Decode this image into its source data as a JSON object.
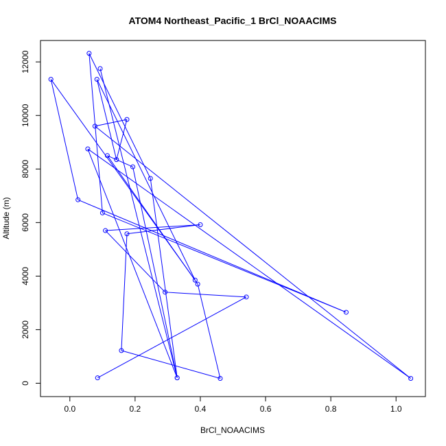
{
  "chart_data": {
    "type": "line",
    "title": "ATOM4 Northeast_Pacific_1 BrCl_NOAACIMS",
    "xlabel": "BrCl_NOAACIMS",
    "ylabel": "Altitude (m)",
    "xlim": [
      -0.09,
      1.09
    ],
    "ylim": [
      -500,
      12800
    ],
    "x_ticks": [
      0.0,
      0.2,
      0.4,
      0.6,
      0.8,
      1.0
    ],
    "x_tick_labels": [
      "0.0",
      "0.2",
      "0.4",
      "0.6",
      "0.8",
      "1.0"
    ],
    "y_ticks": [
      0,
      2000,
      4000,
      6000,
      8000,
      10000,
      12000
    ],
    "y_tick_labels": [
      "0",
      "2000",
      "4000",
      "6000",
      "8000",
      "10000",
      "12000"
    ],
    "grid": false,
    "legend": "none",
    "series": [
      {
        "color": "#0000ff",
        "marker": "open-circle",
        "x": [
          0.085,
          0.541,
          0.292,
          0.109,
          0.4,
          0.175,
          0.158,
          0.461,
          0.392,
          0.115,
          0.193,
          0.329,
          0.247,
          0.059,
          0.1,
          0.847,
          0.025,
          -0.058,
          0.384,
          0.083,
          0.143,
          0.175,
          0.077,
          1.045,
          0.055,
          0.329,
          0.093
        ],
        "y": [
          200,
          3220,
          3400,
          5700,
          5920,
          5580,
          1220,
          180,
          3700,
          8500,
          8080,
          200,
          7650,
          12320,
          6360,
          2650,
          6850,
          11350,
          3850,
          11350,
          8350,
          9850,
          9600,
          180,
          8750,
          200,
          11750
        ]
      }
    ]
  }
}
